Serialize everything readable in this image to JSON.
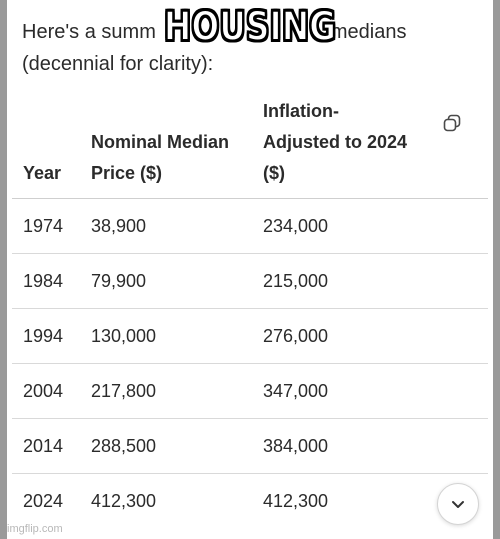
{
  "meme_caption": "HOUSING",
  "intro": {
    "line1": "Here's a summ",
    "line1_tail": "medians",
    "line2": "(decennial for clarity):"
  },
  "table": {
    "headers": {
      "year": "Year",
      "nominal_line1": "Nominal Median",
      "nominal_line2": "Price ($)",
      "adjusted_line1": "Inflation-",
      "adjusted_line2": "Adjusted to 2024",
      "adjusted_line3": "($)"
    },
    "rows": [
      {
        "year": "1974",
        "nominal": "38,900",
        "adjusted": "234,000"
      },
      {
        "year": "1984",
        "nominal": "79,900",
        "adjusted": "215,000"
      },
      {
        "year": "1994",
        "nominal": "130,000",
        "adjusted": "276,000"
      },
      {
        "year": "2004",
        "nominal": "217,800",
        "adjusted": "347,000"
      },
      {
        "year": "2014",
        "nominal": "288,500",
        "adjusted": "384,000"
      },
      {
        "year": "2024",
        "nominal": "412,300",
        "adjusted": "412,300"
      }
    ]
  },
  "icons": {
    "copy": "copy-icon",
    "scroll_down": "chevron-down-icon"
  },
  "watermark": "imgflip.com",
  "colors": {
    "text": "#2b2b2b",
    "rule": "#d9d9d9",
    "edge": "#9a9a9a"
  }
}
